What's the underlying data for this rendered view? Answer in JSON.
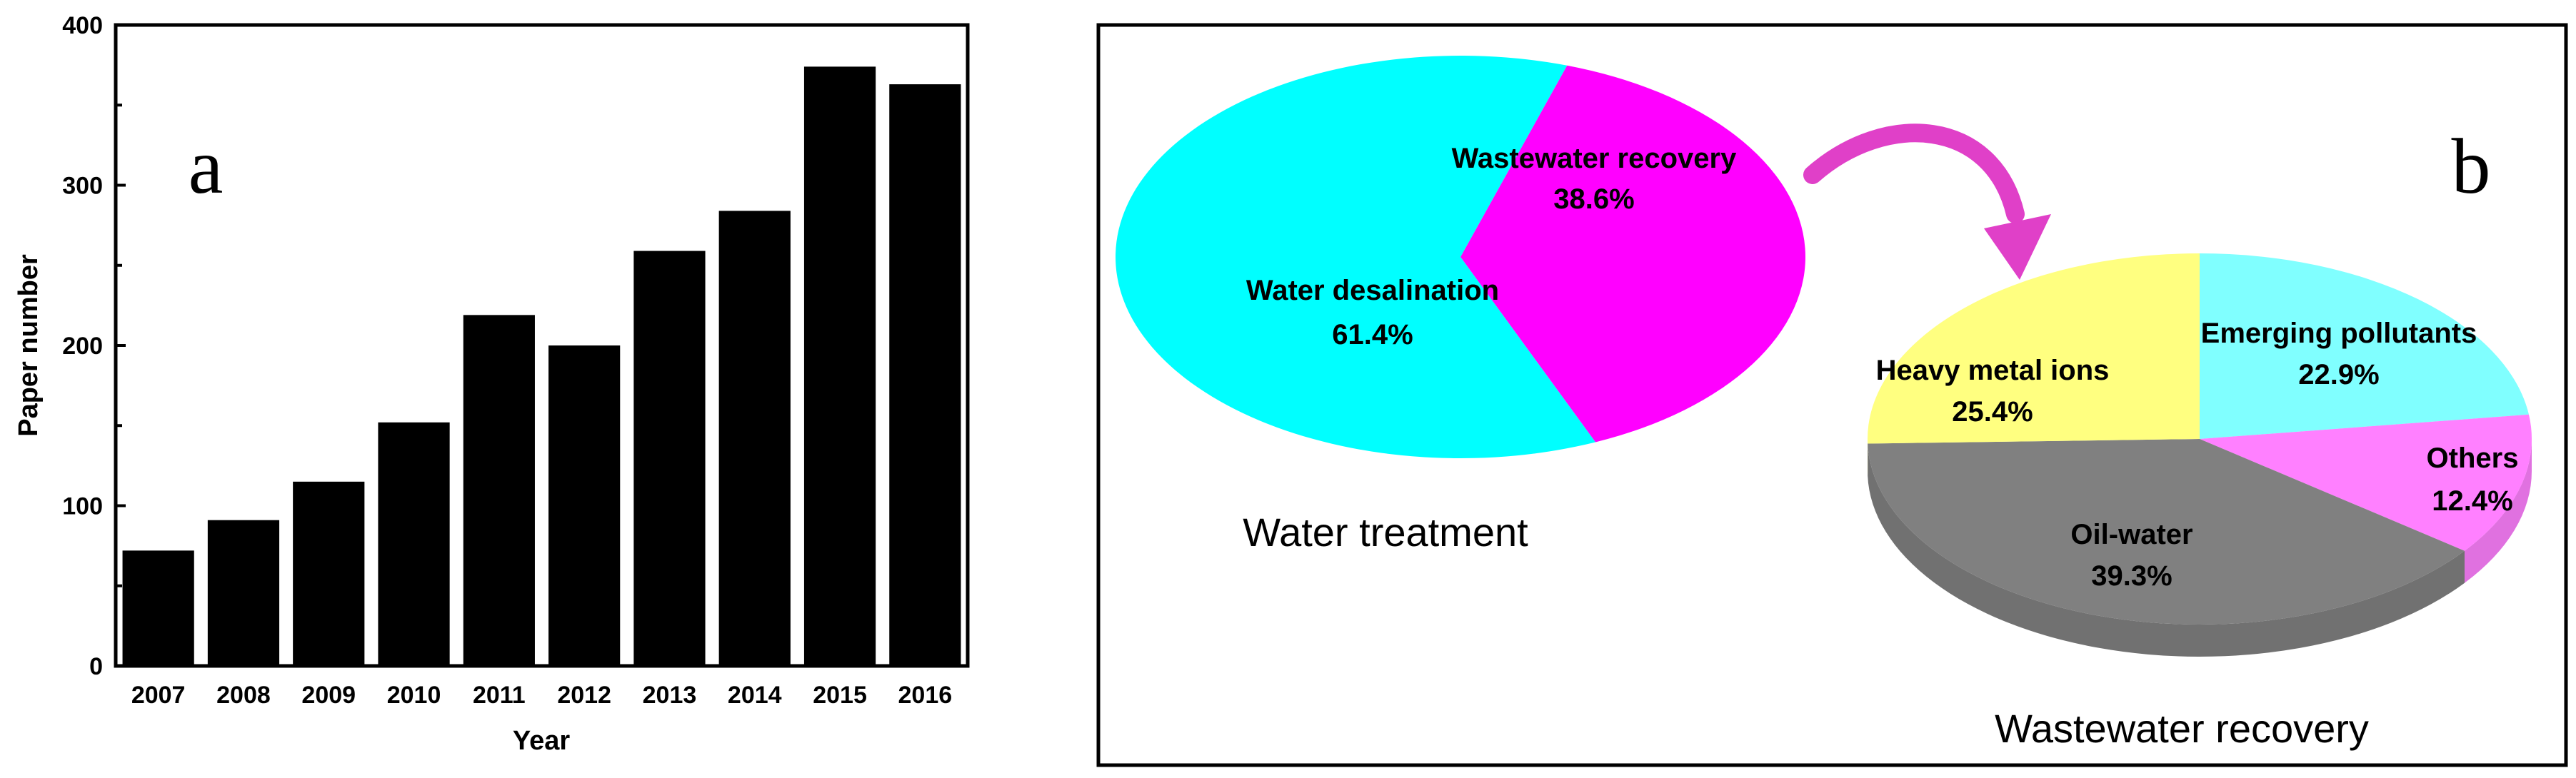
{
  "panel_a_letter": "a",
  "panel_b_letter": "b",
  "chart_data": [
    {
      "type": "bar",
      "categories": [
        "2007",
        "2008",
        "2009",
        "2010",
        "2011",
        "2012",
        "2013",
        "2014",
        "2015",
        "2016"
      ],
      "values": [
        72,
        91,
        115,
        152,
        219,
        200,
        259,
        284,
        374,
        363
      ],
      "xlabel": "Year",
      "ylabel": "Paper number",
      "ylim": [
        0,
        400
      ],
      "yticks": [
        0,
        100,
        200,
        300,
        400
      ],
      "bar_color": "#000000"
    },
    {
      "type": "pie",
      "title": "Water treatment",
      "slices": [
        {
          "label": "Wastewater recovery",
          "percent_label": "38.6%",
          "value": 38.6,
          "color": "#ff00ff"
        },
        {
          "label": "Water desalination",
          "percent_label": "61.4%",
          "value": 61.4,
          "color": "#00ffff"
        }
      ]
    },
    {
      "type": "pie",
      "title": "Wastewater recovery",
      "slices": [
        {
          "label": "Emerging pollutants",
          "percent_label": "22.9%",
          "value": 22.9,
          "color": "#80ffff"
        },
        {
          "label": "Others",
          "percent_label": "12.4%",
          "value": 12.4,
          "color": "#ff80ff"
        },
        {
          "label": "Oil-water",
          "percent_label": "39.3%",
          "value": 39.3,
          "color": "#808080"
        },
        {
          "label": "Heavy metal ions",
          "percent_label": "25.4%",
          "value": 25.4,
          "color": "#ffff80"
        }
      ]
    }
  ]
}
